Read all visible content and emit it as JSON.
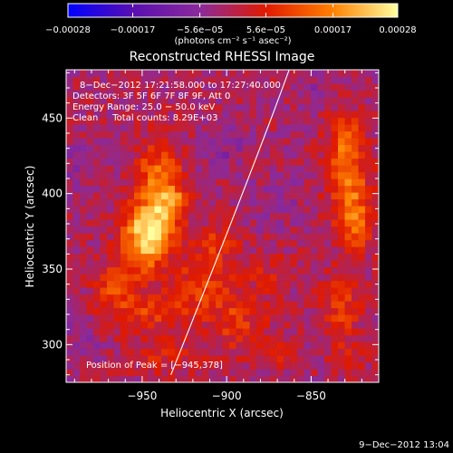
{
  "chart_data": {
    "type": "heatmap",
    "title": "Reconstructed RHESSI Image",
    "xlabel": "Heliocentric X (arcsec)",
    "ylabel": "Heliocentric Y (arcsec)",
    "xlim": [
      -995,
      -810
    ],
    "ylim": [
      275,
      482
    ],
    "x_ticks": [
      -950,
      -900,
      -850
    ],
    "x_tick_labels": [
      "−950",
      "−900",
      "−850"
    ],
    "y_ticks": [
      300,
      350,
      400,
      450
    ],
    "y_tick_labels": [
      "300",
      "350",
      "400",
      "450"
    ],
    "colorbar": {
      "min": -0.00028,
      "max": 0.00028,
      "ticks": [
        -0.00028,
        -0.00017,
        -5.6e-05,
        5.6e-05,
        0.00017,
        0.00028
      ],
      "tick_labels": [
        "−0.00028",
        "−0.00017",
        "−5.6e−05",
        "5.6e−05",
        "0.00017",
        "0.00028"
      ],
      "unit_label": "(photons cm⁻² s⁻¹ asec⁻²)",
      "colors": [
        "#0000ff",
        "#5a0fb0",
        "#8b2a9b",
        "#e01a00",
        "#ff8000",
        "#ffffa0"
      ]
    },
    "annotations": [
      "8−Dec−2012 17:21:58.000 to 17:27:40.000",
      "Detectors: 3F 5F 6F 7F 8F 9F, Att 0",
      "Energy Range: 25.0 − 50.0 keV",
      "Clean     Total counts: 8.29E+03"
    ],
    "peak": {
      "label": "Position of Peak = [−945,378]",
      "x": -945,
      "y": 378
    },
    "limb_line": [
      [
        -933,
        280
      ],
      [
        -883,
        420
      ],
      [
        -863,
        482
      ]
    ],
    "sources": [
      {
        "x": -945,
        "y": 378,
        "sx": 10,
        "sy": 12,
        "amp": 0.00026
      },
      {
        "x": -940,
        "y": 410,
        "sx": 9,
        "sy": 16,
        "amp": 0.00016
      },
      {
        "x": -950,
        "y": 360,
        "sx": 9,
        "sy": 10,
        "amp": 0.00012
      },
      {
        "x": -930,
        "y": 395,
        "sx": 7,
        "sy": 7,
        "amp": 0.00011
      },
      {
        "x": -965,
        "y": 340,
        "sx": 9,
        "sy": 10,
        "amp": 0.0001
      },
      {
        "x": -950,
        "y": 322,
        "sx": 18,
        "sy": 9,
        "amp": 9e-05
      },
      {
        "x": -915,
        "y": 340,
        "sx": 14,
        "sy": 14,
        "amp": 9e-05
      },
      {
        "x": -905,
        "y": 368,
        "sx": 8,
        "sy": 8,
        "amp": 8e-05
      },
      {
        "x": -893,
        "y": 315,
        "sx": 12,
        "sy": 14,
        "amp": 8e-05
      },
      {
        "x": -935,
        "y": 292,
        "sx": 14,
        "sy": 8,
        "amp": 6e-05
      },
      {
        "x": -875,
        "y": 350,
        "sx": 8,
        "sy": 9,
        "amp": 5e-05
      },
      {
        "x": -870,
        "y": 295,
        "sx": 7,
        "sy": 7,
        "amp": 5e-05
      },
      {
        "x": -828,
        "y": 410,
        "sx": 8,
        "sy": 20,
        "amp": 0.00016
      },
      {
        "x": -822,
        "y": 380,
        "sx": 7,
        "sy": 12,
        "amp": 0.00011
      },
      {
        "x": -830,
        "y": 440,
        "sx": 6,
        "sy": 10,
        "amp": 0.0001
      },
      {
        "x": -833,
        "y": 325,
        "sx": 8,
        "sy": 16,
        "amp": 9e-05
      },
      {
        "x": -828,
        "y": 290,
        "sx": 6,
        "sy": 7,
        "amp": 6e-05
      },
      {
        "x": -900,
        "y": 430,
        "sx": 9,
        "sy": 9,
        "amp": -5e-05
      },
      {
        "x": -870,
        "y": 395,
        "sx": 10,
        "sy": 12,
        "amp": -4e-05
      },
      {
        "x": -985,
        "y": 310,
        "sx": 8,
        "sy": 10,
        "amp": -5e-05
      },
      {
        "x": -990,
        "y": 420,
        "sx": 7,
        "sy": 12,
        "amp": -3e-05
      },
      {
        "x": -850,
        "y": 470,
        "sx": 9,
        "sy": 7,
        "amp": -3e-05
      }
    ],
    "background_level": -1e-05,
    "grid": false,
    "date_stamp": "9−Dec−2012 13:04"
  }
}
